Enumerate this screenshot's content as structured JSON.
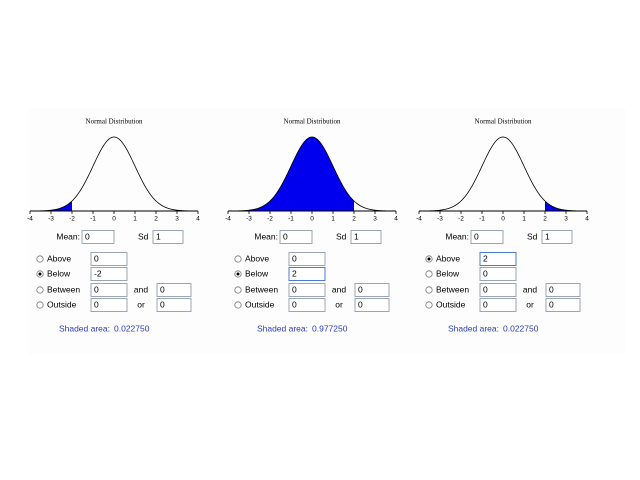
{
  "panels": [
    {
      "title": "Normal Distribution",
      "xlim": [
        -4,
        4
      ],
      "xticks": [
        -4,
        -3,
        -2,
        -1,
        0,
        1,
        2,
        3,
        4
      ],
      "mean_label": "Mean:",
      "mean": "0",
      "sd_label": "Sd",
      "sd": "1",
      "selected": 1,
      "options": [
        {
          "label": "Above",
          "inputs": [
            "0"
          ]
        },
        {
          "label": "Below",
          "inputs": [
            "-2"
          ]
        },
        {
          "label": "Between",
          "inputs": [
            "0",
            "0"
          ],
          "joiner": "and"
        },
        {
          "label": "Outside",
          "inputs": [
            "0",
            "0"
          ],
          "joiner": "or"
        }
      ],
      "shaded_label": "Shaded area:",
      "shaded_area": "0.022750"
    },
    {
      "title": "Normal Distribution",
      "xlim": [
        -4,
        4
      ],
      "xticks": [
        -4,
        -3,
        -2,
        -1,
        0,
        1,
        2,
        3,
        4
      ],
      "mean_label": "Mean:",
      "mean": "0",
      "sd_label": "Sd",
      "sd": "1",
      "selected": 1,
      "options": [
        {
          "label": "Above",
          "inputs": [
            "0"
          ]
        },
        {
          "label": "Below",
          "inputs": [
            "2"
          ]
        },
        {
          "label": "Between",
          "inputs": [
            "0",
            "0"
          ],
          "joiner": "and"
        },
        {
          "label": "Outside",
          "inputs": [
            "0",
            "0"
          ],
          "joiner": "or"
        }
      ],
      "shaded_label": "Shaded area:",
      "shaded_area": "0.977250"
    },
    {
      "title": "Normal Distribution",
      "xlim": [
        -4,
        4
      ],
      "xticks": [
        -4,
        -3,
        -2,
        -1,
        0,
        1,
        2,
        3,
        4
      ],
      "mean_label": "Mean:",
      "mean": "0",
      "sd_label": "Sd",
      "sd": "1",
      "selected": 0,
      "options": [
        {
          "label": "Above",
          "inputs": [
            "2"
          ]
        },
        {
          "label": "Below",
          "inputs": [
            "0"
          ]
        },
        {
          "label": "Between",
          "inputs": [
            "0",
            "0"
          ],
          "joiner": "and"
        },
        {
          "label": "Outside",
          "inputs": [
            "0",
            "0"
          ],
          "joiner": "or"
        }
      ],
      "shaded_label": "Shaded area:",
      "shaded_area": "0.022750"
    }
  ]
}
